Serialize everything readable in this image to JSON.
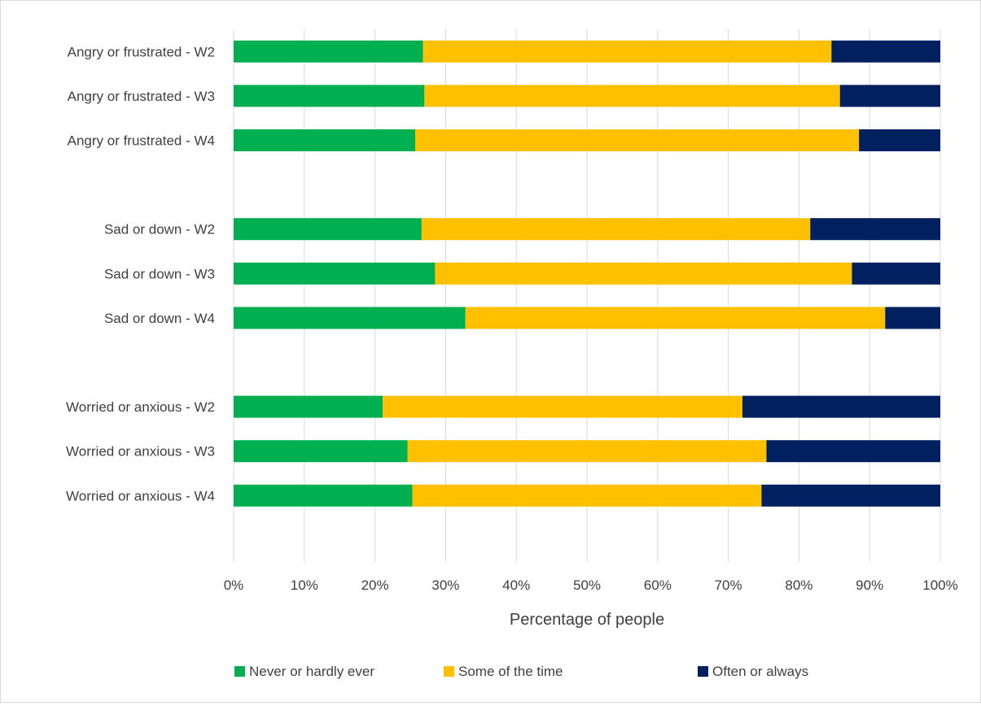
{
  "chart_data": {
    "type": "bar",
    "orientation": "horizontal",
    "stacked": "percent",
    "categories": [
      "Angry or frustrated - W2",
      "Angry or frustrated - W3",
      "Angry or frustrated - W4",
      "",
      "Sad or down - W2",
      "Sad or down - W3",
      "Sad or down - W4",
      "",
      "Worried or anxious - W2",
      "Worried or anxious - W3",
      "Worried or anxious - W4",
      ""
    ],
    "series": [
      {
        "name": "Never or hardly ever",
        "color": "#00b050",
        "values": [
          26.8,
          27.0,
          25.7,
          null,
          26.6,
          28.5,
          32.8,
          null,
          21.1,
          24.6,
          25.3,
          null
        ]
      },
      {
        "name": "Some of the time",
        "color": "#ffc000",
        "values": [
          57.8,
          58.8,
          62.8,
          null,
          55.0,
          59.0,
          59.4,
          null,
          50.9,
          50.8,
          49.4,
          null
        ]
      },
      {
        "name": "Often or always",
        "color": "#002060",
        "values": [
          15.4,
          14.2,
          11.5,
          null,
          18.4,
          12.5,
          7.8,
          null,
          28.0,
          24.6,
          25.3,
          null
        ]
      }
    ],
    "xlabel": "Percentage of people",
    "ylabel": "",
    "xlim": [
      0,
      100
    ],
    "xticks": [
      "0%",
      "10%",
      "20%",
      "30%",
      "40%",
      "50%",
      "60%",
      "70%",
      "80%",
      "90%",
      "100%"
    ],
    "grid": "vertical",
    "legend_position": "bottom"
  }
}
